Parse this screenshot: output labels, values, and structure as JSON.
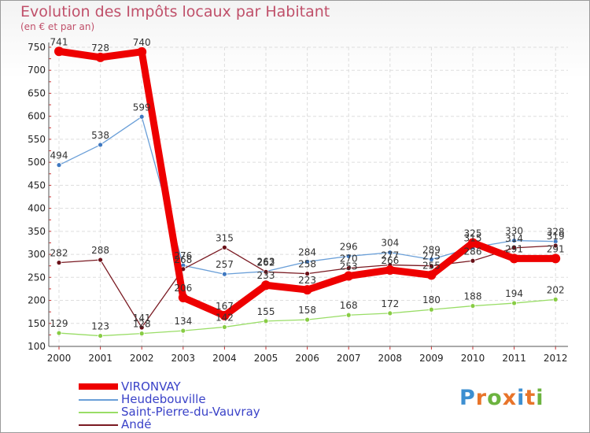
{
  "header": {
    "title": "Evolution des Impôts locaux par Habitant",
    "subtitle": "(en € et par an)"
  },
  "chart_data": {
    "type": "line",
    "title": "Evolution des Impôts locaux par Habitant",
    "subtitle": "(en € et par an)",
    "xlabel": "",
    "ylabel": "",
    "ylim": [
      100,
      750
    ],
    "yticks": [
      100,
      150,
      200,
      250,
      300,
      350,
      400,
      450,
      500,
      550,
      600,
      650,
      700,
      750
    ],
    "grid": true,
    "legend_position": "bottom-left",
    "x": [
      "2000",
      "2001",
      "2002",
      "2003",
      "2004",
      "2005",
      "2006",
      "2007",
      "2008",
      "2009",
      "2010",
      "2011",
      "2012"
    ],
    "series": [
      {
        "name": "VIRONVAY",
        "color": "#ee0000",
        "values": [
          741,
          728,
          740,
          206,
          167,
          233,
          223,
          253,
          266,
          255,
          325,
          291,
          291
        ]
      },
      {
        "name": "Heudebouville",
        "color": "#6a9fd8",
        "values": [
          494,
          538,
          599,
          276,
          257,
          263,
          284,
          296,
          304,
          289,
          315,
          330,
          328
        ]
      },
      {
        "name": "Saint-Pierre-du-Vauvray",
        "color": "#99dd66",
        "values": [
          129,
          123,
          128,
          134,
          142,
          155,
          158,
          168,
          172,
          180,
          188,
          194,
          202
        ]
      },
      {
        "name": "Andé",
        "color": "#7a1a22",
        "values": [
          282,
          288,
          141,
          268,
          315,
          262,
          258,
          270,
          277,
          275,
          286,
          314,
          319
        ]
      }
    ]
  },
  "brand": {
    "logo_text": "Proxiti",
    "letters": [
      "P",
      "r",
      "o",
      "x",
      "i",
      "t",
      "i"
    ],
    "letter_colors": [
      "#3d8fd1",
      "#e8742a",
      "#6cb33f",
      "#e8742a",
      "#3d8fd1",
      "#e8742a",
      "#6cb33f"
    ]
  }
}
